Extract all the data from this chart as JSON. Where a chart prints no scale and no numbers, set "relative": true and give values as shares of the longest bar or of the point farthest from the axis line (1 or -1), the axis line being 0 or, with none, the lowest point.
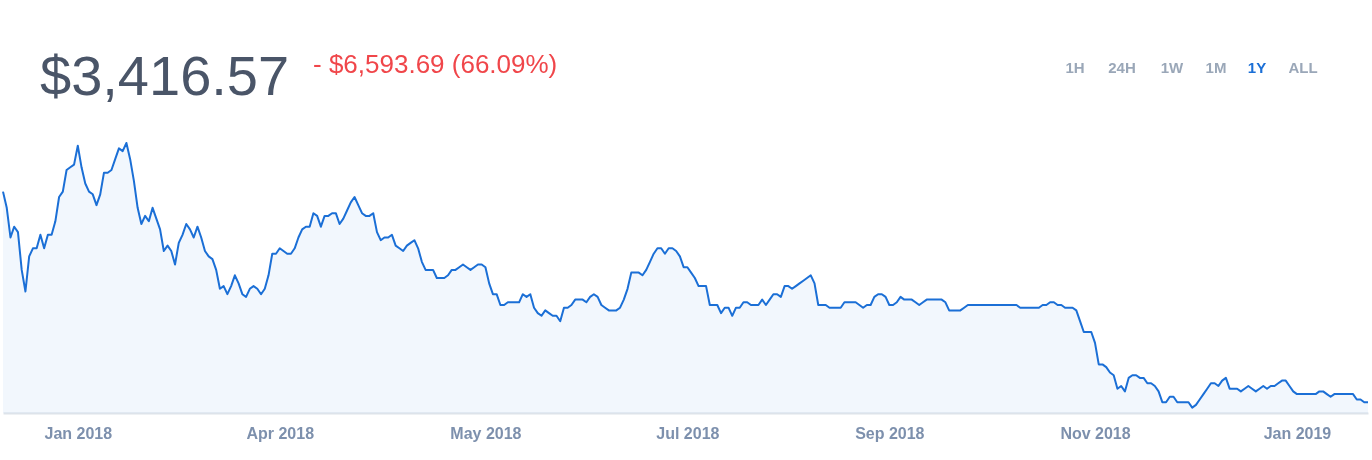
{
  "chart_data": {
    "type": "area",
    "relative": true,
    "title": "$3,416.57",
    "subtitle": "- $6,593.69 (66.09%)",
    "annotations": [
      "1H",
      "24H",
      "1W",
      "1M",
      "1Y",
      "ALL"
    ],
    "categories": [
      null,
      null,
      null,
      null,
      null,
      null,
      null,
      null,
      null,
      null,
      null,
      null,
      null,
      null,
      null,
      null,
      null,
      null,
      null,
      null,
      "Jan 2018",
      null,
      null,
      null,
      null,
      null,
      null,
      null,
      null,
      null,
      null,
      null,
      null,
      null,
      null,
      null,
      null,
      null,
      null,
      null,
      null,
      null,
      null,
      null,
      null,
      null,
      null,
      null,
      null,
      null,
      null,
      null,
      null,
      null,
      null,
      null,
      null,
      null,
      null,
      null,
      null,
      null,
      null,
      null,
      null,
      null,
      null,
      null,
      null,
      null,
      null,
      null,
      null,
      null,
      "Apr 2018",
      null,
      null,
      null,
      null,
      null,
      null,
      null,
      null,
      null,
      null,
      null,
      null,
      null,
      null,
      null,
      null,
      null,
      null,
      null,
      null,
      null,
      null,
      null,
      null,
      null,
      null,
      null,
      null,
      null,
      null,
      null,
      null,
      null,
      null,
      null,
      null,
      null,
      null,
      null,
      null,
      null,
      null,
      null,
      null,
      null,
      null,
      null,
      null,
      null,
      null,
      null,
      null,
      null,
      null,
      "May 2018",
      null,
      null,
      null,
      null,
      null,
      null,
      null,
      null,
      null,
      null,
      null,
      null,
      null,
      null,
      null,
      null,
      null,
      null,
      null,
      null,
      null,
      null,
      null,
      null,
      null,
      null,
      null,
      null,
      null,
      null,
      null,
      null,
      null,
      null,
      null,
      null,
      null,
      null,
      null,
      null,
      null,
      null,
      null,
      null,
      null,
      null,
      null,
      null,
      null,
      null,
      null,
      null,
      null,
      "Jul 2018",
      null,
      null,
      null,
      null,
      null,
      null,
      null,
      null,
      null,
      null,
      null,
      null,
      null,
      null,
      null,
      null,
      null,
      null,
      null,
      null,
      null,
      null,
      null,
      null,
      null,
      null,
      null,
      null,
      null,
      null,
      null,
      null,
      null,
      null,
      null,
      null,
      null,
      null,
      null,
      null,
      null,
      null,
      null,
      null,
      null,
      null,
      null,
      null,
      null,
      null,
      null,
      null,
      null,
      "Sep 2018",
      null,
      null,
      null,
      null,
      null,
      null,
      null,
      null,
      null,
      null,
      null,
      null,
      null,
      null,
      null,
      null,
      null,
      null,
      null,
      null,
      null,
      null,
      null,
      null,
      null,
      null,
      null,
      null,
      null,
      null,
      null,
      null,
      null,
      null,
      null,
      null,
      null,
      null,
      null,
      null,
      null,
      null,
      null,
      null,
      null,
      null,
      null,
      null,
      null,
      null,
      null,
      null,
      null,
      null,
      "Nov 2018",
      null,
      null,
      null,
      null,
      null,
      null,
      null,
      null,
      null,
      null,
      null,
      null,
      null,
      null,
      null,
      null,
      null,
      null,
      null,
      null,
      null,
      null,
      null,
      null,
      null,
      null,
      null,
      null,
      null,
      null,
      null,
      null,
      null,
      null,
      null,
      null,
      null,
      null,
      null,
      null,
      null,
      null,
      null,
      null,
      null,
      null,
      null,
      null,
      null,
      null,
      null,
      null,
      null,
      "Jan 2019",
      null,
      null,
      null,
      null,
      null,
      null,
      null,
      null,
      null,
      null,
      null,
      null,
      null,
      null,
      null,
      null,
      null,
      null,
      null
    ],
    "series": [
      {
        "color": "#1b6fd6",
        "values": [
          0.82,
          0.76,
          0.65,
          0.69,
          0.67,
          0.53,
          0.45,
          0.58,
          0.61,
          0.61,
          0.66,
          0.61,
          0.66,
          0.66,
          0.71,
          0.8,
          0.82,
          0.9,
          0.91,
          0.92,
          0.99,
          0.91,
          0.85,
          0.82,
          0.81,
          0.77,
          0.81,
          0.89,
          0.89,
          0.9,
          0.94,
          0.98,
          0.97,
          1.0,
          0.94,
          0.86,
          0.76,
          0.7,
          0.73,
          0.71,
          0.76,
          0.72,
          0.68,
          0.6,
          0.62,
          0.6,
          0.55,
          0.63,
          0.66,
          0.7,
          0.68,
          0.65,
          0.69,
          0.65,
          0.6,
          0.58,
          0.57,
          0.53,
          0.46,
          0.47,
          0.44,
          0.47,
          0.51,
          0.48,
          0.44,
          0.43,
          0.46,
          0.47,
          0.46,
          0.44,
          0.46,
          0.51,
          0.59,
          0.59,
          0.61,
          0.6,
          0.59,
          0.59,
          0.61,
          0.65,
          0.68,
          0.69,
          0.69,
          0.74,
          0.73,
          0.69,
          0.73,
          0.73,
          0.74,
          0.74,
          0.7,
          0.72,
          0.75,
          0.78,
          0.8,
          0.77,
          0.74,
          0.73,
          0.73,
          0.74,
          0.67,
          0.64,
          0.65,
          0.65,
          0.66,
          0.62,
          0.61,
          0.6,
          0.62,
          0.63,
          0.64,
          0.61,
          0.56,
          0.53,
          0.53,
          0.53,
          0.5,
          0.5,
          0.5,
          0.51,
          0.53,
          0.53,
          0.54,
          0.55,
          0.54,
          0.53,
          0.54,
          0.55,
          0.55,
          0.54,
          0.48,
          0.44,
          0.44,
          0.4,
          0.4,
          0.41,
          0.41,
          0.41,
          0.41,
          0.44,
          0.43,
          0.44,
          0.39,
          0.37,
          0.36,
          0.38,
          0.37,
          0.36,
          0.36,
          0.34,
          0.39,
          0.39,
          0.4,
          0.42,
          0.42,
          0.42,
          0.41,
          0.43,
          0.44,
          0.43,
          0.4,
          0.39,
          0.38,
          0.38,
          0.38,
          0.39,
          0.42,
          0.46,
          0.52,
          0.52,
          0.52,
          0.51,
          0.53,
          0.56,
          0.59,
          0.61,
          0.61,
          0.59,
          0.61,
          0.61,
          0.6,
          0.58,
          0.54,
          0.54,
          0.52,
          0.5,
          0.47,
          0.47,
          0.47,
          0.4,
          0.4,
          0.4,
          0.37,
          0.39,
          0.39,
          0.36,
          0.39,
          0.39,
          0.41,
          0.41,
          0.4,
          0.4,
          0.4,
          0.42,
          0.4,
          0.42,
          0.44,
          0.44,
          0.43,
          0.47,
          0.47,
          0.46,
          0.47,
          0.48,
          0.49,
          0.5,
          0.51,
          0.48,
          0.4,
          0.4,
          0.4,
          0.39,
          0.39,
          0.39,
          0.39,
          0.41,
          0.41,
          0.41,
          0.41,
          0.4,
          0.39,
          0.4,
          0.4,
          0.43,
          0.44,
          0.44,
          0.43,
          0.4,
          0.4,
          0.41,
          0.43,
          0.42,
          0.42,
          0.42,
          0.41,
          0.4,
          0.41,
          0.42,
          0.42,
          0.42,
          0.42,
          0.42,
          0.41,
          0.38,
          0.38,
          0.38,
          0.38,
          0.39,
          0.4,
          0.4,
          0.4,
          0.4,
          0.4,
          0.4,
          0.4,
          0.4,
          0.4,
          0.4,
          0.4,
          0.4,
          0.4,
          0.4,
          0.39,
          0.39,
          0.39,
          0.39,
          0.39,
          0.39,
          0.4,
          0.4,
          0.41,
          0.41,
          0.4,
          0.4,
          0.39,
          0.39,
          0.39,
          0.38,
          0.34,
          0.3,
          0.3,
          0.3,
          0.26,
          0.18,
          0.18,
          0.17,
          0.15,
          0.14,
          0.09,
          0.1,
          0.08,
          0.13,
          0.14,
          0.14,
          0.13,
          0.13,
          0.11,
          0.11,
          0.1,
          0.08,
          0.04,
          0.04,
          0.06,
          0.06,
          0.04,
          0.04,
          0.04,
          0.04,
          0.02,
          0.03,
          0.05,
          0.07,
          0.09,
          0.11,
          0.11,
          0.1,
          0.12,
          0.13,
          0.09,
          0.09,
          0.09,
          0.08,
          0.09,
          0.1,
          0.09,
          0.08,
          0.09,
          0.1,
          0.09,
          0.1,
          0.1,
          0.11,
          0.12,
          0.12,
          0.1,
          0.08,
          0.07,
          0.07,
          0.07,
          0.07,
          0.07,
          0.07,
          0.08,
          0.08,
          0.07,
          0.06,
          0.07,
          0.07,
          0.07,
          0.07,
          0.07,
          0.07,
          0.05,
          0.05,
          0.04,
          0.04
        ]
      }
    ]
  }
}
